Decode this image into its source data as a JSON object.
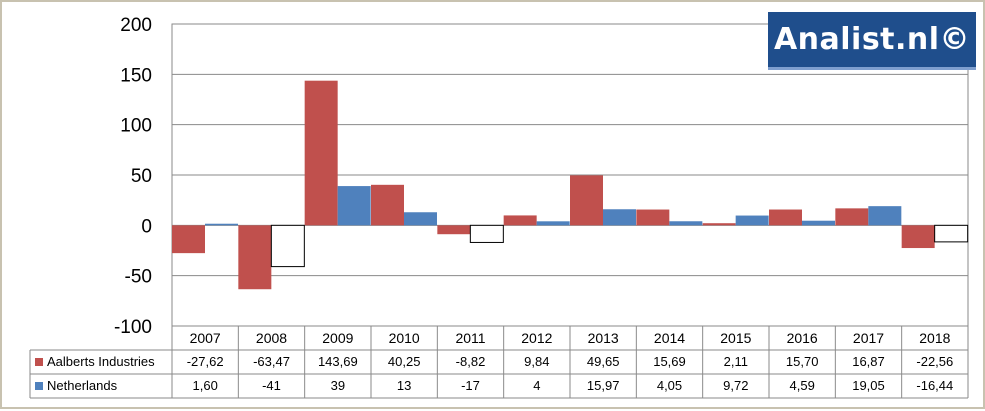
{
  "logo": {
    "text": "Analist.nl©",
    "background": "#1f4e8c"
  },
  "chart_data": {
    "type": "bar",
    "title": "",
    "xlabel": "",
    "ylabel": "",
    "ylim": [
      -100,
      200
    ],
    "yticks": [
      200,
      150,
      100,
      50,
      0,
      -50,
      -100
    ],
    "grid": true,
    "legend": "data-table-rows",
    "categories": [
      "2007",
      "2008",
      "2009",
      "2010",
      "2011",
      "2012",
      "2013",
      "2014",
      "2015",
      "2016",
      "2017",
      "2018"
    ],
    "series": [
      {
        "name": "Aalberts Industries",
        "color": "#c0504d",
        "values": [
          -27.62,
          -63.47,
          143.69,
          40.25,
          -8.82,
          9.84,
          49.65,
          15.69,
          2.11,
          15.7,
          16.87,
          -22.56
        ],
        "labels": [
          "-27,62",
          "-63,47",
          "143,69",
          "40,25",
          "-8,82",
          "9,84",
          "49,65",
          "15,69",
          "2,11",
          "15,70",
          "16,87",
          "-22,56"
        ]
      },
      {
        "name": "Netherlands",
        "color": "#4f81bd",
        "values": [
          1.6,
          -41,
          39,
          13,
          -17,
          4,
          15.97,
          4.05,
          9.72,
          4.59,
          19.05,
          -16.44
        ],
        "labels": [
          "1,60",
          "-41",
          "39",
          "13",
          "-17",
          "4",
          "15,97",
          "4,05",
          "9,72",
          "4,59",
          "19,05",
          "-16,44"
        ],
        "negative_fill": "#ffffff"
      }
    ]
  }
}
